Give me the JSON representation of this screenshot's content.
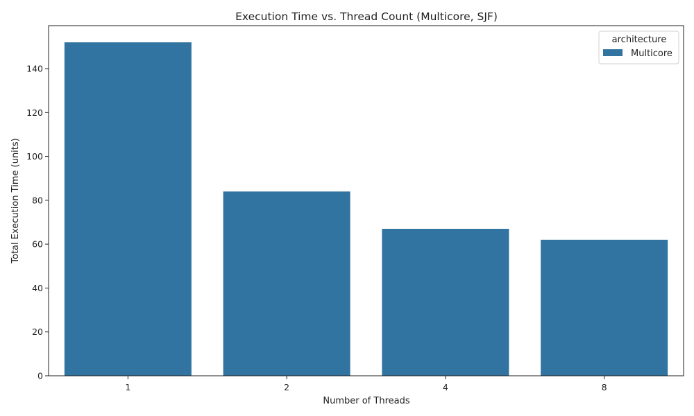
{
  "chart_data": {
    "type": "bar",
    "title": "Execution Time vs. Thread Count (Multicore, SJF)",
    "xlabel": "Number of Threads",
    "ylabel": "Total Execution Time (units)",
    "categories": [
      "1",
      "2",
      "4",
      "8"
    ],
    "series": [
      {
        "name": "Multicore",
        "values": [
          152,
          84,
          67,
          62
        ],
        "color": "#3274a1"
      }
    ],
    "ylim": [
      0,
      159.6
    ],
    "yticks": [
      0,
      20,
      40,
      60,
      80,
      100,
      120,
      140
    ],
    "grid": false,
    "legend": {
      "title": "architecture",
      "placement": "top-right"
    }
  }
}
